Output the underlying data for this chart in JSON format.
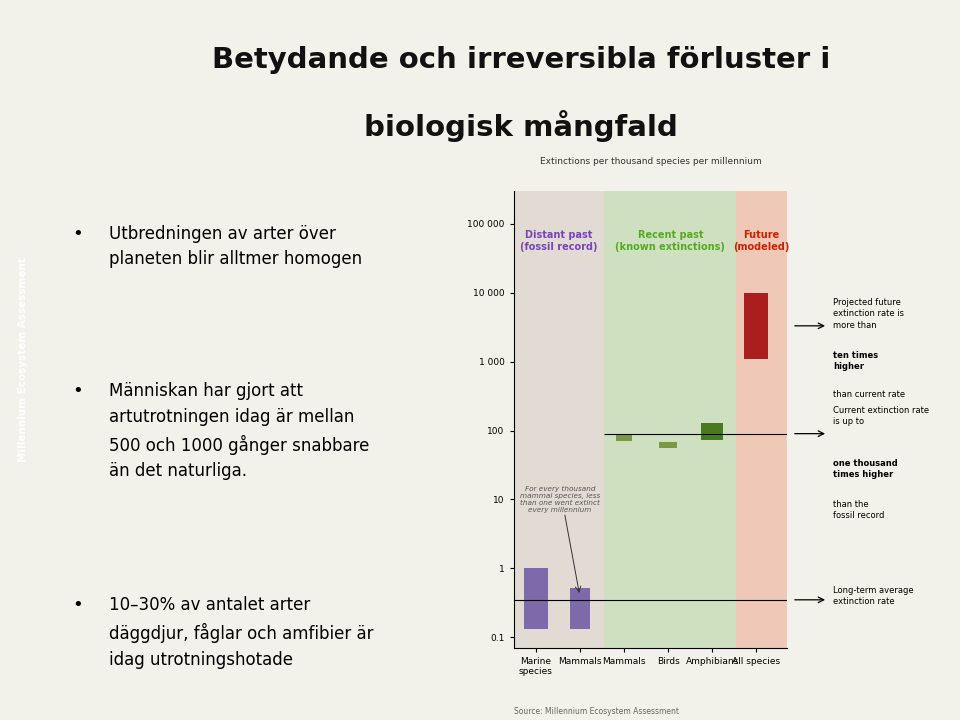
{
  "title_line1": "Betydande och irreversibla förluster i",
  "title_line2": "biologisk mångfald",
  "title_bg_color": "#c8c89a",
  "slide_bg_color": "#f2f2ea",
  "sidebar_color": "#7a7a45",
  "sidebar_text": "Millennium Ecosystem Assessment",
  "bullets": [
    "Utbredningen av arter över\nplaneten blir alltmer homogen",
    "Människan har gjort att\nartutrotningen idag är mellan\n500 och 1000 gånger snabbare\nän det naturliga.",
    "10–30% av antalet arter\ndäggdjur, fåglar och amfibier är\nidag utrotningshotade"
  ],
  "chart_title": "Extinctions per thousand species per millennium",
  "section_labels": [
    "Distant past\n(fossil record)",
    "Recent past\n(known extinctions)",
    "Future\n(modeled)"
  ],
  "section_bg_colors": [
    "#e2dbd4",
    "#cfe0c0",
    "#f0c8b8"
  ],
  "section_label_colors": [
    "#7744bb",
    "#55aa22",
    "#cc2200"
  ],
  "x_labels": [
    "Marine\nspecies",
    "Mammals",
    "Mammals",
    "Birds",
    "Amphibians",
    "All species"
  ],
  "source_text": "Source: Millennium Ecosystem Assessment",
  "ann1_text1": "Projected future\nextinction rate is\nmore than ",
  "ann1_bold": "ten times\nhigher",
  "ann1_text2": " than current rate",
  "ann2_text1": "Current extinction rate\nis up to ",
  "ann2_bold": "one thousand\ntimes higher",
  "ann2_text2": " than the\nfossil record",
  "ann3_text": "Long-term average\nextinction rate",
  "fossil_text": "For every thousand\nmammal species, less\nthan one went extinct\nevery millennium"
}
